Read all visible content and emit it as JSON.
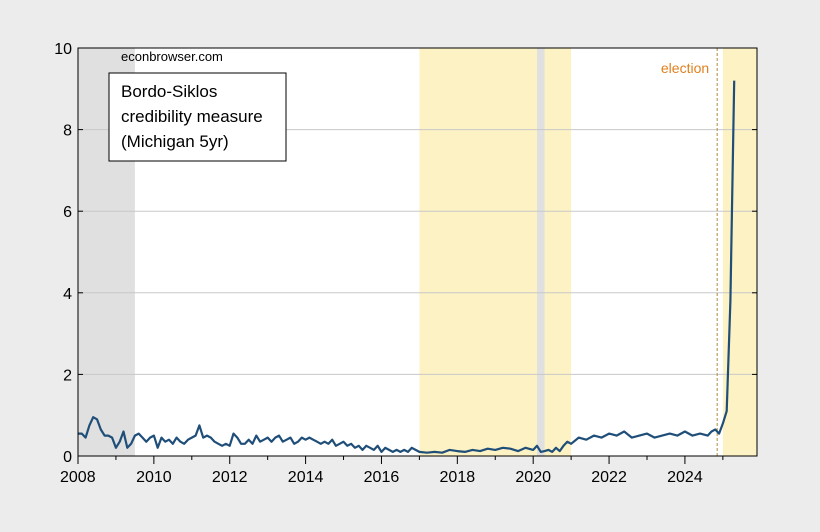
{
  "chart_data": {
    "type": "line",
    "title": "",
    "xlabel": "",
    "ylabel": "",
    "xlim": [
      2008.0,
      2025.9
    ],
    "ylim": [
      0,
      10
    ],
    "y_ticks": [
      0,
      2,
      4,
      6,
      8,
      10
    ],
    "x_ticks": [
      2008,
      2010,
      2012,
      2014,
      2016,
      2018,
      2020,
      2022,
      2024
    ],
    "grid": "horizontal",
    "watermark": "econbrowser.com",
    "legend_lines": [
      "Bordo-Siklos",
      "credibility measure",
      "(Michigan 5yr)"
    ],
    "legend_position": "top-left",
    "election_label": "election",
    "election_date": 2024.85,
    "recession_shading": [
      {
        "start": 2008.0,
        "end": 2009.5,
        "color": "#e0e0e0"
      },
      {
        "start": 2020.1,
        "end": 2020.3,
        "color": "#e0e0e0"
      }
    ],
    "administration_shading": [
      {
        "start": 2017.0,
        "end": 2021.0,
        "color": "#fdf2c4"
      },
      {
        "start": 2025.0,
        "end": 2025.9,
        "color": "#fdf2c4"
      }
    ],
    "series": [
      {
        "color": "#1f4e79",
        "x": [
          2008.0,
          2008.1,
          2008.2,
          2008.3,
          2008.4,
          2008.5,
          2008.6,
          2008.7,
          2008.8,
          2008.9,
          2009.0,
          2009.1,
          2009.2,
          2009.3,
          2009.4,
          2009.5,
          2009.6,
          2009.7,
          2009.8,
          2009.9,
          2010.0,
          2010.1,
          2010.2,
          2010.3,
          2010.4,
          2010.5,
          2010.6,
          2010.7,
          2010.8,
          2010.9,
          2011.0,
          2011.1,
          2011.2,
          2011.3,
          2011.4,
          2011.5,
          2011.6,
          2011.7,
          2011.8,
          2011.9,
          2012.0,
          2012.1,
          2012.2,
          2012.3,
          2012.4,
          2012.5,
          2012.6,
          2012.7,
          2012.8,
          2012.9,
          2013.0,
          2013.1,
          2013.2,
          2013.3,
          2013.4,
          2013.5,
          2013.6,
          2013.7,
          2013.8,
          2013.9,
          2014.0,
          2014.1,
          2014.2,
          2014.3,
          2014.4,
          2014.5,
          2014.6,
          2014.7,
          2014.8,
          2014.9,
          2015.0,
          2015.1,
          2015.2,
          2015.3,
          2015.4,
          2015.5,
          2015.6,
          2015.7,
          2015.8,
          2015.9,
          2016.0,
          2016.1,
          2016.2,
          2016.3,
          2016.4,
          2016.5,
          2016.6,
          2016.7,
          2016.8,
          2016.9,
          2017.0,
          2017.2,
          2017.4,
          2017.6,
          2017.8,
          2018.0,
          2018.2,
          2018.4,
          2018.6,
          2018.8,
          2019.0,
          2019.2,
          2019.4,
          2019.6,
          2019.8,
          2020.0,
          2020.1,
          2020.2,
          2020.3,
          2020.4,
          2020.5,
          2020.6,
          2020.7,
          2020.8,
          2020.9,
          2021.0,
          2021.2,
          2021.4,
          2021.6,
          2021.8,
          2022.0,
          2022.2,
          2022.4,
          2022.6,
          2022.8,
          2023.0,
          2023.2,
          2023.4,
          2023.6,
          2023.8,
          2024.0,
          2024.2,
          2024.4,
          2024.6,
          2024.7,
          2024.8,
          2024.9,
          2025.0,
          2025.1,
          2025.2,
          2025.3
        ],
        "values": [
          0.55,
          0.55,
          0.45,
          0.75,
          0.95,
          0.9,
          0.65,
          0.5,
          0.5,
          0.45,
          0.2,
          0.35,
          0.6,
          0.2,
          0.3,
          0.5,
          0.55,
          0.45,
          0.35,
          0.45,
          0.5,
          0.2,
          0.45,
          0.35,
          0.4,
          0.3,
          0.45,
          0.35,
          0.3,
          0.4,
          0.45,
          0.5,
          0.75,
          0.45,
          0.5,
          0.45,
          0.35,
          0.3,
          0.25,
          0.3,
          0.25,
          0.55,
          0.45,
          0.3,
          0.3,
          0.4,
          0.3,
          0.5,
          0.35,
          0.4,
          0.45,
          0.35,
          0.45,
          0.5,
          0.35,
          0.4,
          0.45,
          0.3,
          0.35,
          0.45,
          0.4,
          0.45,
          0.4,
          0.35,
          0.3,
          0.35,
          0.3,
          0.4,
          0.25,
          0.3,
          0.35,
          0.25,
          0.3,
          0.2,
          0.25,
          0.15,
          0.25,
          0.2,
          0.15,
          0.25,
          0.1,
          0.2,
          0.15,
          0.1,
          0.15,
          0.1,
          0.15,
          0.1,
          0.2,
          0.15,
          0.1,
          0.08,
          0.1,
          0.08,
          0.15,
          0.12,
          0.1,
          0.15,
          0.12,
          0.18,
          0.15,
          0.2,
          0.18,
          0.12,
          0.2,
          0.15,
          0.25,
          0.1,
          0.12,
          0.15,
          0.1,
          0.2,
          0.12,
          0.25,
          0.35,
          0.3,
          0.45,
          0.4,
          0.5,
          0.45,
          0.55,
          0.5,
          0.6,
          0.45,
          0.5,
          0.55,
          0.45,
          0.5,
          0.55,
          0.5,
          0.6,
          0.5,
          0.55,
          0.5,
          0.6,
          0.65,
          0.55,
          0.8,
          1.1,
          3.8,
          9.2
        ]
      }
    ]
  }
}
